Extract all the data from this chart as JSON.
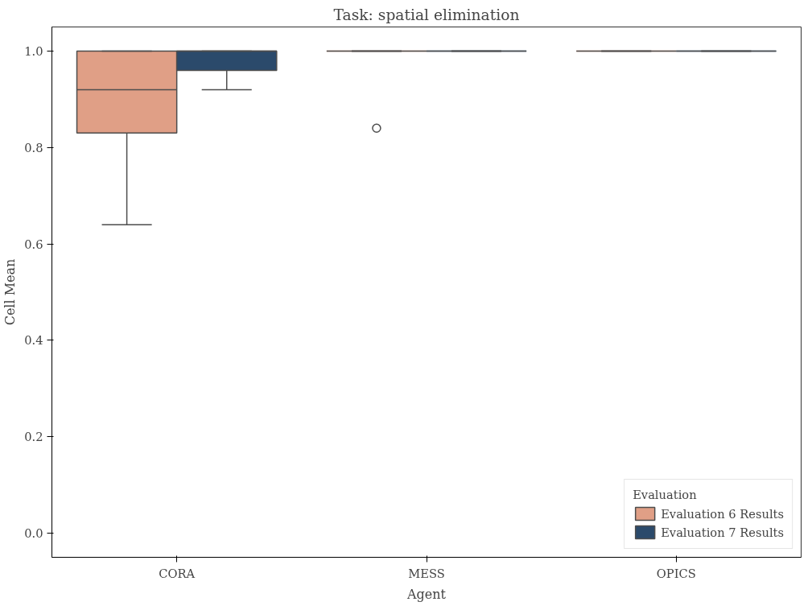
{
  "chart_data": {
    "type": "box",
    "title": "Task: spatial elimination",
    "xlabel": "Agent",
    "ylabel": "Cell Mean",
    "legend_title": "Evaluation",
    "categories": [
      "CORA",
      "MESS",
      "OPICS"
    ],
    "series": [
      {
        "name": "Evaluation 6 Results",
        "color": "#e09f86",
        "boxes": [
          {
            "low": 0.64,
            "q1": 0.83,
            "median": 0.92,
            "q3": 1.0,
            "high": 1.0
          },
          {
            "low": 1.0,
            "q1": 1.0,
            "median": 1.0,
            "q3": 1.0,
            "high": 1.0,
            "outliers": [
              0.84
            ]
          },
          {
            "low": 1.0,
            "q1": 1.0,
            "median": 1.0,
            "q3": 1.0,
            "high": 1.0
          }
        ]
      },
      {
        "name": "Evaluation 7 Results",
        "color": "#2b4a6b",
        "boxes": [
          {
            "low": 0.92,
            "q1": 0.96,
            "median": 1.0,
            "q3": 1.0,
            "high": 1.0
          },
          {
            "low": 1.0,
            "q1": 1.0,
            "median": 1.0,
            "q3": 1.0,
            "high": 1.0
          },
          {
            "low": 1.0,
            "q1": 1.0,
            "median": 1.0,
            "q3": 1.0,
            "high": 1.0
          }
        ]
      }
    ],
    "ylim": [
      -0.05,
      1.05
    ],
    "yticks": [
      {
        "value": 0,
        "label": "0.0"
      },
      0.2,
      0.4,
      0.6,
      0.8,
      {
        "value": 1,
        "label": "1.0"
      }
    ],
    "grid": false,
    "legend": "bottom right"
  }
}
